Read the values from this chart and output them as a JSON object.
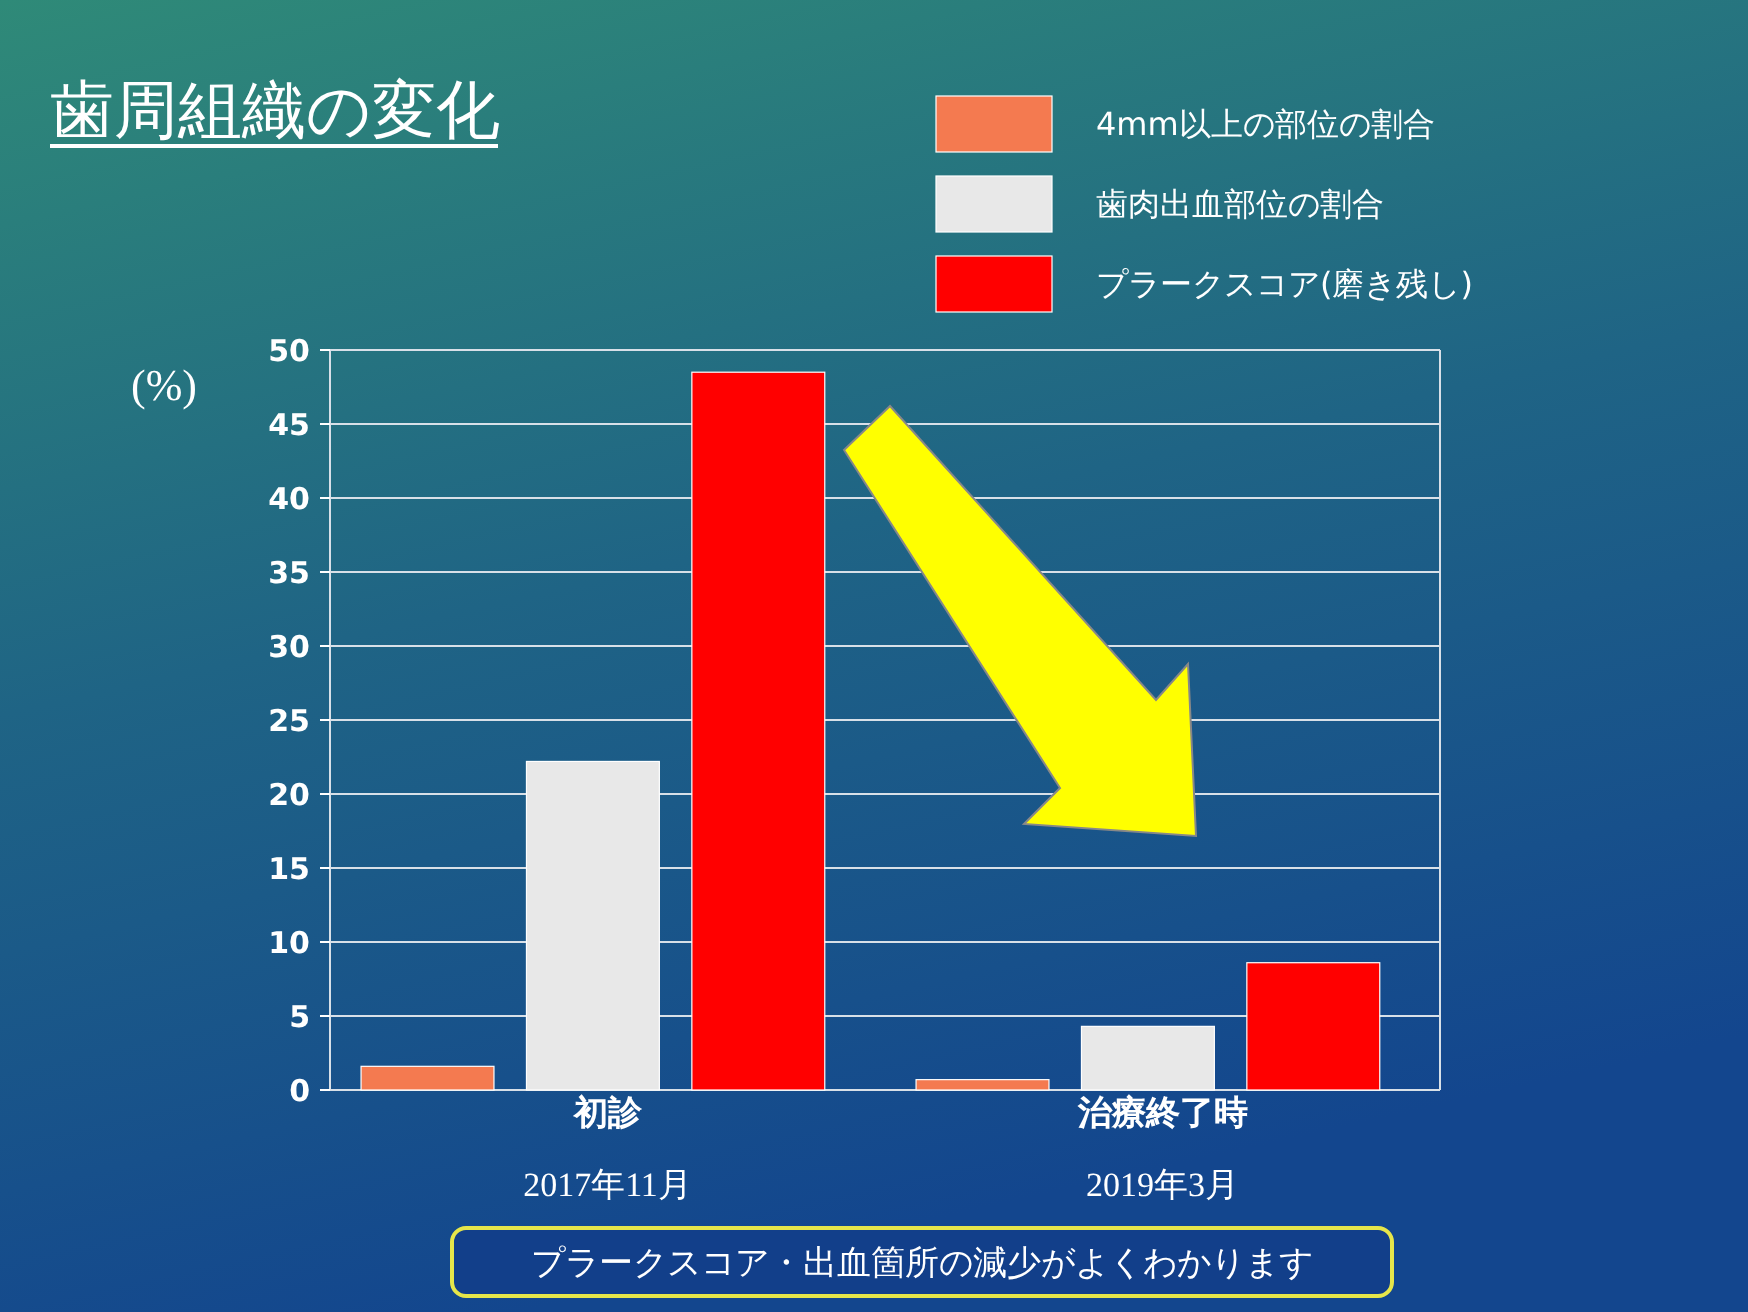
{
  "chart_data": {
    "type": "bar",
    "title": "歯周組織の変化",
    "ylabel": "(%)",
    "categories": [
      "初診\n2017年11月",
      "治療終了時\n2019年3月"
    ],
    "series": [
      {
        "name": "4mm以上の部位の割合",
        "color": "#f47a50",
        "values": [
          1.6,
          0.7
        ]
      },
      {
        "name": "歯肉出血部位の割合",
        "color": "#e8e8e8",
        "values": [
          22.2,
          4.3
        ]
      },
      {
        "name": "プラークスコア(磨き残し)",
        "color": "#ff0000",
        "values": [
          48.5,
          8.6
        ]
      }
    ],
    "ylim": [
      0,
      50
    ],
    "yticks": [
      0,
      5,
      10,
      15,
      20,
      25,
      30,
      35,
      40,
      45,
      50
    ],
    "grid": "y",
    "legend": "top right",
    "annotations": [
      "プラークスコア・出血箇所の減少がよくわかります"
    ]
  }
}
